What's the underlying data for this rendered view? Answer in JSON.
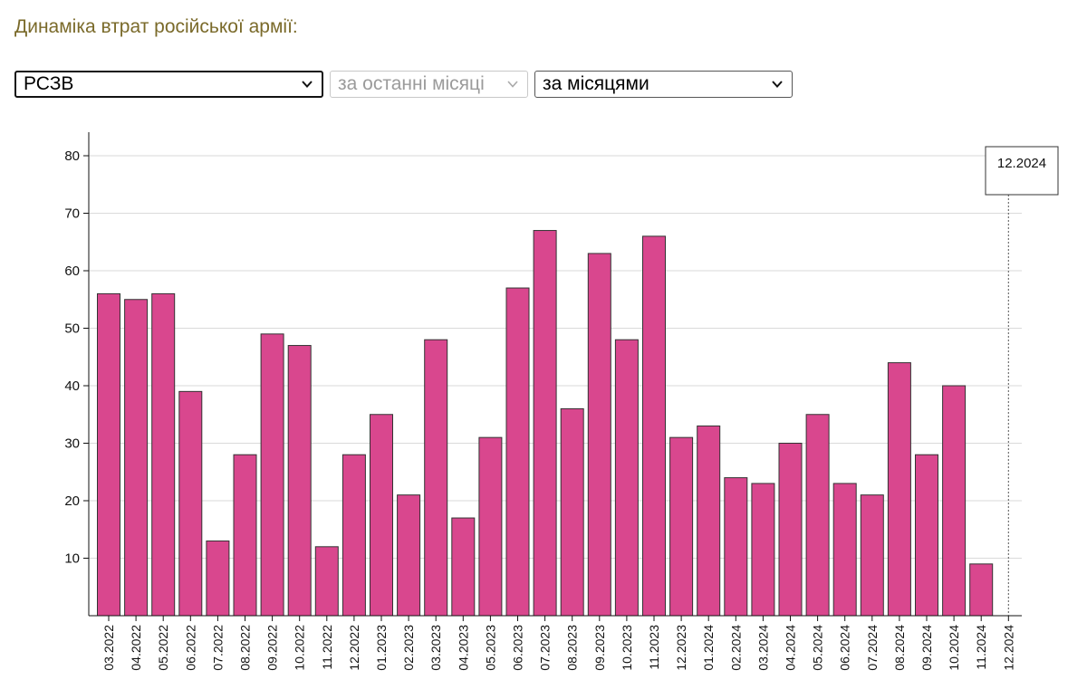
{
  "header": {
    "title": "Динаміка втрат російської армії:"
  },
  "filters": {
    "weapon": {
      "value": "РСЗВ"
    },
    "period": {
      "value": "за останні місяці",
      "disabled": true
    },
    "grouping": {
      "value": "за місяцями"
    }
  },
  "colors": {
    "bar": "#d9478e",
    "title": "#7a6a2a"
  },
  "icons": {
    "dropdown": "chevron-down-icon"
  },
  "chart_data": {
    "type": "bar",
    "title": "",
    "xlabel": "",
    "ylabel": "",
    "ylim": [
      0,
      84
    ],
    "yticks": [
      10,
      20,
      30,
      40,
      50,
      60,
      70,
      80
    ],
    "grid": true,
    "categories": [
      "03.2022",
      "04.2022",
      "05.2022",
      "06.2022",
      "07.2022",
      "08.2022",
      "09.2022",
      "10.2022",
      "11.2022",
      "12.2022",
      "01.2023",
      "02.2023",
      "03.2023",
      "04.2023",
      "05.2023",
      "06.2023",
      "07.2023",
      "08.2023",
      "09.2023",
      "10.2023",
      "11.2023",
      "12.2023",
      "01.2024",
      "02.2024",
      "03.2024",
      "04.2024",
      "05.2024",
      "06.2024",
      "07.2024",
      "08.2024",
      "09.2024",
      "10.2024",
      "11.2024",
      "12.2024"
    ],
    "values": [
      56,
      55,
      56,
      39,
      13,
      28,
      49,
      47,
      12,
      28,
      35,
      21,
      48,
      17,
      31,
      57,
      67,
      36,
      63,
      48,
      66,
      31,
      33,
      24,
      23,
      30,
      35,
      23,
      21,
      44,
      28,
      40,
      9,
      null
    ],
    "hover": {
      "label": "12.2024"
    }
  }
}
